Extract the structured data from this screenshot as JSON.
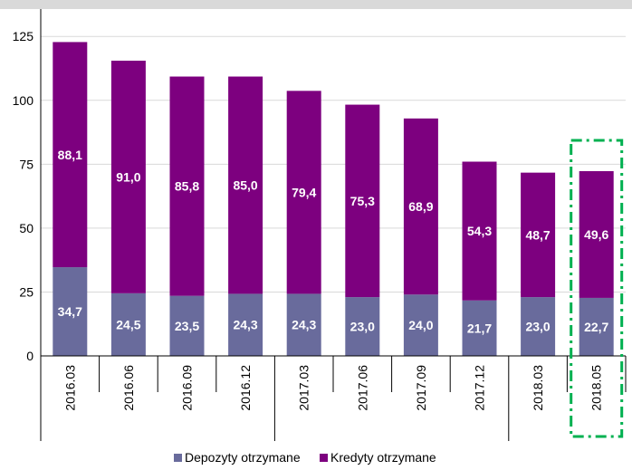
{
  "chart_data": {
    "type": "bar",
    "stacked": true,
    "categories": [
      "2016.03",
      "2016.06",
      "2016.09",
      "2016.12",
      "2017.03",
      "2017.06",
      "2017.09",
      "2017.12",
      "2018.03",
      "2018.05"
    ],
    "series": [
      {
        "name": "Depozyty otrzymane",
        "color": "#696B9C",
        "values": [
          34.7,
          24.5,
          23.5,
          24.3,
          24.3,
          23.0,
          24.0,
          21.7,
          23.0,
          22.7
        ],
        "labels": [
          "34,7",
          "24,5",
          "23,5",
          "24,3",
          "24,3",
          "23,0",
          "24,0",
          "21,7",
          "23,0",
          "22,7"
        ]
      },
      {
        "name": "Kredyty otrzymane",
        "color": "#7D007F",
        "values": [
          88.1,
          91.0,
          85.8,
          85.0,
          79.4,
          75.3,
          68.9,
          54.3,
          48.7,
          49.6
        ],
        "labels": [
          "88,1",
          "91,0",
          "85,8",
          "85,0",
          "79,4",
          "75,3",
          "68,9",
          "54,3",
          "48,7",
          "49,6"
        ]
      }
    ],
    "y_ticks": [
      "0",
      "25",
      "50",
      "75",
      "100",
      "125"
    ],
    "ylim": [
      0,
      135
    ],
    "grid": true,
    "legend_position": "bottom",
    "highlighted_category": "2018.05",
    "highlight_color": "#00B050"
  }
}
